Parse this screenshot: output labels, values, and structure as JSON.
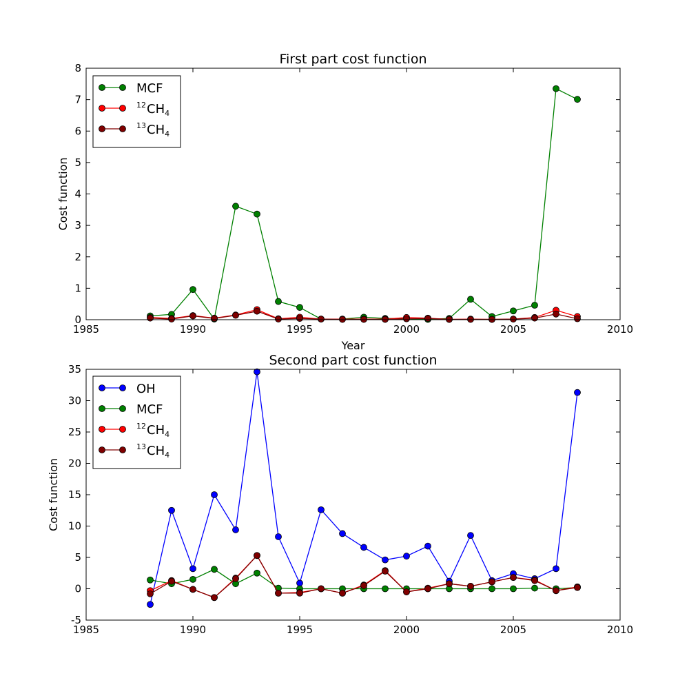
{
  "chart_data": [
    {
      "type": "line",
      "title": "First part cost function",
      "xlabel": "Year",
      "ylabel": "Cost function",
      "xlim": [
        1985,
        2010
      ],
      "ylim": [
        0,
        8
      ],
      "xticks": [
        1985,
        1990,
        1995,
        2000,
        2005,
        2010
      ],
      "yticks": [
        0,
        1,
        2,
        3,
        4,
        5,
        6,
        7,
        8
      ],
      "grid": false,
      "legend": "top-left",
      "x": [
        1988,
        1989,
        1990,
        1991,
        1992,
        1993,
        1994,
        1995,
        1996,
        1997,
        1998,
        1999,
        2000,
        2001,
        2002,
        2003,
        2004,
        2005,
        2006,
        2007,
        2008
      ],
      "series": [
        {
          "name": "MCF",
          "label": {
            "pre": "",
            "main": "MCF",
            "sub": ""
          },
          "color": "#008000",
          "values": [
            0.12,
            0.17,
            0.96,
            0.02,
            3.61,
            3.36,
            0.58,
            0.39,
            0.02,
            0.02,
            0.08,
            0.04,
            0.03,
            0.01,
            0.04,
            0.65,
            0.1,
            0.28,
            0.46,
            7.35,
            7.01
          ]
        },
        {
          "name": "12CH4",
          "label": {
            "pre": "12",
            "main": "CH",
            "sub": "4"
          },
          "color": "#ff0000",
          "values": [
            0.07,
            0.04,
            0.13,
            0.05,
            0.15,
            0.32,
            0.03,
            0.08,
            0.02,
            0.02,
            0.02,
            0.02,
            0.07,
            0.05,
            0.01,
            0.02,
            0.01,
            0.02,
            0.07,
            0.3,
            0.1
          ]
        },
        {
          "name": "13CH4",
          "label": {
            "pre": "13",
            "main": "CH",
            "sub": "4"
          },
          "color": "#800000",
          "values": [
            0.05,
            0.02,
            0.12,
            0.04,
            0.14,
            0.27,
            0.02,
            0.04,
            0.02,
            0.01,
            0.01,
            0.01,
            0.03,
            0.04,
            0.01,
            0.01,
            0.01,
            0.02,
            0.05,
            0.18,
            0.03
          ]
        }
      ]
    },
    {
      "type": "line",
      "title": "Second part cost function",
      "xlabel": "",
      "ylabel": "Cost function",
      "xlim": [
        1985,
        2010
      ],
      "ylim": [
        -5,
        35
      ],
      "xticks": [
        1985,
        1990,
        1995,
        2000,
        2005,
        2010
      ],
      "yticks": [
        -5,
        0,
        5,
        10,
        15,
        20,
        25,
        30,
        35
      ],
      "grid": false,
      "legend": "top-left",
      "x": [
        1988,
        1989,
        1990,
        1991,
        1992,
        1993,
        1994,
        1995,
        1996,
        1997,
        1998,
        1999,
        2000,
        2001,
        2002,
        2003,
        2004,
        2005,
        2006,
        2007,
        2008
      ],
      "series": [
        {
          "name": "OH",
          "label": {
            "pre": "",
            "main": "OH",
            "sub": ""
          },
          "color": "#0000ff",
          "values": [
            -2.5,
            12.5,
            3.2,
            15.0,
            9.4,
            34.6,
            8.3,
            0.9,
            12.6,
            8.8,
            6.6,
            4.6,
            5.2,
            6.8,
            1.2,
            8.5,
            1.3,
            2.4,
            1.6,
            3.2,
            31.3
          ]
        },
        {
          "name": "MCF",
          "label": {
            "pre": "",
            "main": "MCF",
            "sub": ""
          },
          "color": "#008000",
          "values": [
            1.4,
            0.8,
            1.5,
            3.1,
            0.8,
            2.5,
            0.1,
            0.0,
            0.0,
            0.0,
            0.0,
            0.0,
            0.0,
            0.0,
            0.0,
            0.0,
            0.0,
            0.0,
            0.1,
            0.0,
            0.2
          ]
        },
        {
          "name": "12CH4",
          "label": {
            "pre": "12",
            "main": "CH",
            "sub": "4"
          },
          "color": "#ff0000",
          "values": [
            -0.3,
            1.3,
            -0.1,
            -1.4,
            1.7,
            5.3,
            -0.7,
            -0.6,
            0.0,
            -0.7,
            0.6,
            2.9,
            -0.5,
            0.1,
            0.8,
            0.4,
            1.1,
            1.8,
            1.4,
            -0.3,
            0.3
          ]
        },
        {
          "name": "13CH4",
          "label": {
            "pre": "13",
            "main": "CH",
            "sub": "4"
          },
          "color": "#800000",
          "values": [
            -0.8,
            1.2,
            -0.1,
            -1.4,
            1.6,
            5.3,
            -0.7,
            -0.7,
            0.0,
            -0.7,
            0.5,
            2.8,
            -0.5,
            0.0,
            0.8,
            0.4,
            1.1,
            1.8,
            1.3,
            -0.3,
            0.2
          ]
        }
      ]
    }
  ]
}
